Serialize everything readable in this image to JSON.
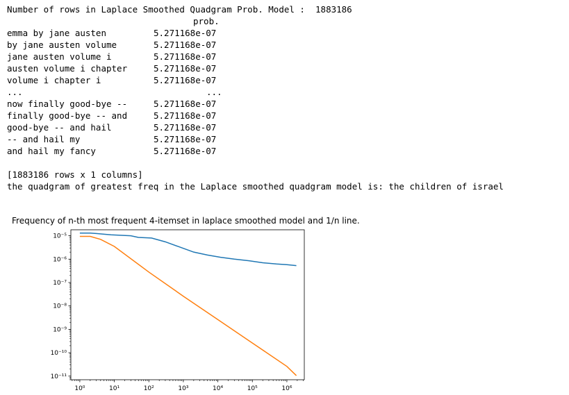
{
  "output": {
    "header_label": "Number of rows in Laplace Smoothed Quadgram Prob. Model :  ",
    "header_value": "1883186",
    "dataframe": {
      "column_header": "prob.",
      "ellipsis": "...",
      "rows": [
        {
          "index": "emma by jane austen",
          "value": "5.271168e-07"
        },
        {
          "index": "by jane austen volume",
          "value": "5.271168e-07"
        },
        {
          "index": "jane austen volume i",
          "value": "5.271168e-07"
        },
        {
          "index": "austen volume i chapter",
          "value": "5.271168e-07"
        },
        {
          "index": "volume i chapter i",
          "value": "5.271168e-07"
        },
        {
          "index": "...",
          "value": "..."
        },
        {
          "index": "now finally good-bye --",
          "value": "5.271168e-07"
        },
        {
          "index": "finally good-bye -- and",
          "value": "5.271168e-07"
        },
        {
          "index": "good-bye -- and hail",
          "value": "5.271168e-07"
        },
        {
          "index": "-- and hail my",
          "value": "5.271168e-07"
        },
        {
          "index": "and hail my fancy",
          "value": "5.271168e-07"
        }
      ],
      "shape": "[1883186 rows x 1 columns]"
    },
    "result_line": "the quadgram of greatest freq in the Laplace smoothed quadgram model is: the children of israel"
  },
  "chart_data": {
    "type": "line",
    "title": "Frequency of n-th most frequent 4-itemset in laplace smoothed model and 1/n line.",
    "xscale": "log",
    "yscale": "log",
    "xlim": [
      0.55,
      3200000
    ],
    "ylim": [
      7e-12,
      1.8e-05
    ],
    "xticks": [
      1,
      10,
      100,
      1000,
      10000,
      100000,
      1000000
    ],
    "xtick_labels": [
      "10⁰",
      "10¹",
      "10²",
      "10³",
      "10⁴",
      "10⁵",
      "10⁶"
    ],
    "yticks": [
      1e-11,
      1e-10,
      1e-09,
      1e-08,
      1e-07,
      1e-06,
      1e-05
    ],
    "ytick_labels": [
      "10⁻¹¹",
      "10⁻¹⁰",
      "10⁻⁹",
      "10⁻⁸",
      "10⁻⁷",
      "10⁻⁶",
      "10⁻⁵"
    ],
    "grid": false,
    "series": [
      {
        "color": "#1f77b4",
        "points": [
          [
            1,
            1.3e-05
          ],
          [
            2,
            1.3e-05
          ],
          [
            3,
            1.25e-05
          ],
          [
            8,
            1.1e-05
          ],
          [
            30,
            1e-05
          ],
          [
            50,
            8.5e-06
          ],
          [
            120,
            8e-06
          ],
          [
            300,
            5.5e-06
          ],
          [
            700,
            3.5e-06
          ],
          [
            2000,
            2e-06
          ],
          [
            5000,
            1.5e-06
          ],
          [
            12000,
            1.2e-06
          ],
          [
            30000,
            1e-06
          ],
          [
            80000,
            8.5e-07
          ],
          [
            200000,
            7e-07
          ],
          [
            500000,
            6.2e-07
          ],
          [
            1000000,
            5.8e-07
          ],
          [
            1883186,
            5.3e-07
          ]
        ]
      },
      {
        "color": "#ff7f0e",
        "points": [
          [
            1,
            9.4e-06
          ],
          [
            2,
            9.4e-06
          ],
          [
            4,
            7e-06
          ],
          [
            10,
            3.5e-06
          ],
          [
            100,
            2.8e-07
          ],
          [
            1000,
            2.6e-08
          ],
          [
            10000,
            2.6e-09
          ],
          [
            100000,
            2.6e-10
          ],
          [
            1000000,
            2.6e-11
          ],
          [
            1883186,
            1.05e-11
          ]
        ]
      }
    ]
  }
}
